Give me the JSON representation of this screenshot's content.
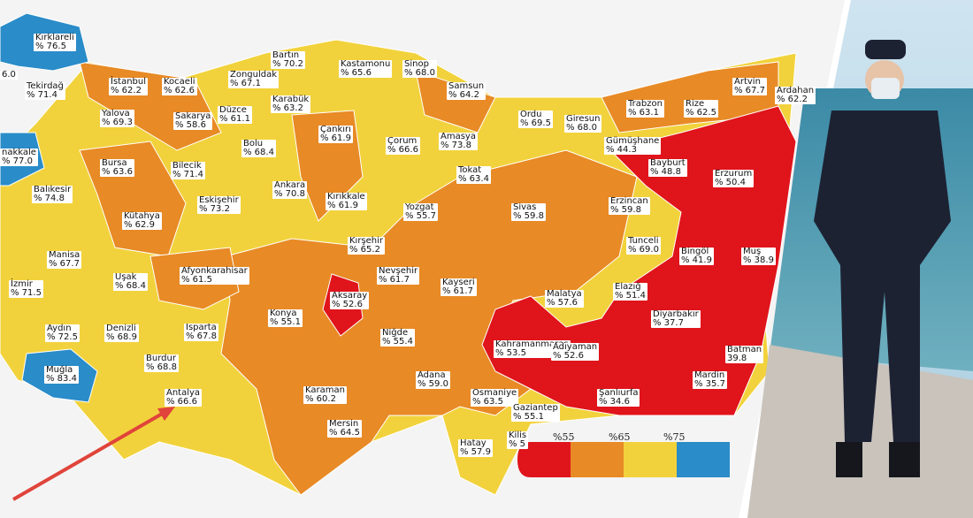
{
  "map": {
    "provinces": [
      {
        "name": "Kırklareli",
        "label": "% 76.5"
      },
      {
        "name": "",
        "label": "6.0"
      },
      {
        "name": "Tekirdağ",
        "label": "% 71.4"
      },
      {
        "name": "İstanbul",
        "label": "% 62.2"
      },
      {
        "name": "Kocaeli",
        "label": "% 62.6"
      },
      {
        "name": "Zonguldak",
        "label": "% 67.1"
      },
      {
        "name": "Bartın",
        "label": "% 70.2"
      },
      {
        "name": "Kastamonu",
        "label": "% 65.6"
      },
      {
        "name": "Sinop",
        "label": "% 68.0"
      },
      {
        "name": "Samsun",
        "label": "% 64.2"
      },
      {
        "name": "Artvin",
        "label": "% 67.7"
      },
      {
        "name": "Ardahan",
        "label": "% 62.2"
      },
      {
        "name": "Yalova",
        "label": "% 69.3"
      },
      {
        "name": "Sakarya",
        "label": "% 58.6"
      },
      {
        "name": "Düzce",
        "label": "% 61.1"
      },
      {
        "name": "Karabük",
        "label": "% 63.2"
      },
      {
        "name": "Trabzon",
        "label": "% 63.1"
      },
      {
        "name": "Rize",
        "label": "% 62.5"
      },
      {
        "name": "Ordu",
        "label": "% 69.5"
      },
      {
        "name": "Giresun",
        "label": "% 68.0"
      },
      {
        "name": "Çankırı",
        "label": "% 61.9"
      },
      {
        "name": "Çorum",
        "label": "% 66.6"
      },
      {
        "name": "Amasya",
        "label": "% 73.8"
      },
      {
        "name": "Gümüşhane",
        "label": "% 44.3"
      },
      {
        "name": "nakkale",
        "label": "% 77.0"
      },
      {
        "name": "Bursa",
        "label": "% 63.6"
      },
      {
        "name": "Bilecik",
        "label": "% 71.4"
      },
      {
        "name": "Bolu",
        "label": "% 68.4"
      },
      {
        "name": "Balıkesir",
        "label": "% 74.8"
      },
      {
        "name": "Bayburt",
        "label": "% 48.8"
      },
      {
        "name": "Erzurum",
        "label": "% 50.4"
      },
      {
        "name": "Tokat",
        "label": "% 63.4"
      },
      {
        "name": "Eskişehir",
        "label": "% 73.2"
      },
      {
        "name": "Ankara",
        "label": "% 70.8"
      },
      {
        "name": "Kırıkkale",
        "label": "% 61.9"
      },
      {
        "name": "Yozgat",
        "label": "% 55.7"
      },
      {
        "name": "Sivas",
        "label": "% 59.8"
      },
      {
        "name": "Erzincan",
        "label": "% 59.8"
      },
      {
        "name": "Kütahya",
        "label": "% 62.9"
      },
      {
        "name": "Manisa",
        "label": "% 67.7"
      },
      {
        "name": "Kırşehir",
        "label": "% 65.2"
      },
      {
        "name": "Tunceli",
        "label": "% 69.0"
      },
      {
        "name": "Bingöl",
        "label": "% 41.9"
      },
      {
        "name": "Muş",
        "label": "% 38.9"
      },
      {
        "name": "Uşak",
        "label": "% 68.4"
      },
      {
        "name": "Afyonkarahisar",
        "label": "% 61.5"
      },
      {
        "name": "Nevşehir",
        "label": "% 61.7"
      },
      {
        "name": "Kayseri",
        "label": "% 61.7"
      },
      {
        "name": "İzmir",
        "label": "% 71.5"
      },
      {
        "name": "Aksaray",
        "label": "% 52.6"
      },
      {
        "name": "Malatya",
        "label": "% 57.6"
      },
      {
        "name": "Elazığ",
        "label": "% 51.4"
      },
      {
        "name": "Konya",
        "label": "% 55.1"
      },
      {
        "name": "Diyarbakır",
        "label": "% 37.7"
      },
      {
        "name": "Aydın",
        "label": "% 72.5"
      },
      {
        "name": "Denizli",
        "label": "% 68.9"
      },
      {
        "name": "Isparta",
        "label": "% 67.8"
      },
      {
        "name": "Niğde",
        "label": "% 55.4"
      },
      {
        "name": "Kahramanmaraş",
        "label": "% 53.5"
      },
      {
        "name": "Adıyaman",
        "label": "% 52.6"
      },
      {
        "name": "Batman",
        "label": "39.8"
      },
      {
        "name": "Muğla",
        "label": "% 83.4"
      },
      {
        "name": "Burdur",
        "label": "% 68.8"
      },
      {
        "name": "Mardin",
        "label": "% 35.7"
      },
      {
        "name": "Adana",
        "label": "% 59.0"
      },
      {
        "name": "Antalya",
        "label": "% 66.6"
      },
      {
        "name": "Karaman",
        "label": "% 60.2"
      },
      {
        "name": "Osmaniye",
        "label": "% 63.5"
      },
      {
        "name": "Gaziantep",
        "label": "% 55.1"
      },
      {
        "name": "Şanlıurfa",
        "label": "% 34.6"
      },
      {
        "name": "Mersin",
        "label": "% 64.5"
      },
      {
        "name": "Kilis",
        "label": "% 5"
      },
      {
        "name": "Hatay",
        "label": "% 57.9"
      }
    ],
    "legend": [
      "%55",
      "%65",
      "%75"
    ]
  }
}
